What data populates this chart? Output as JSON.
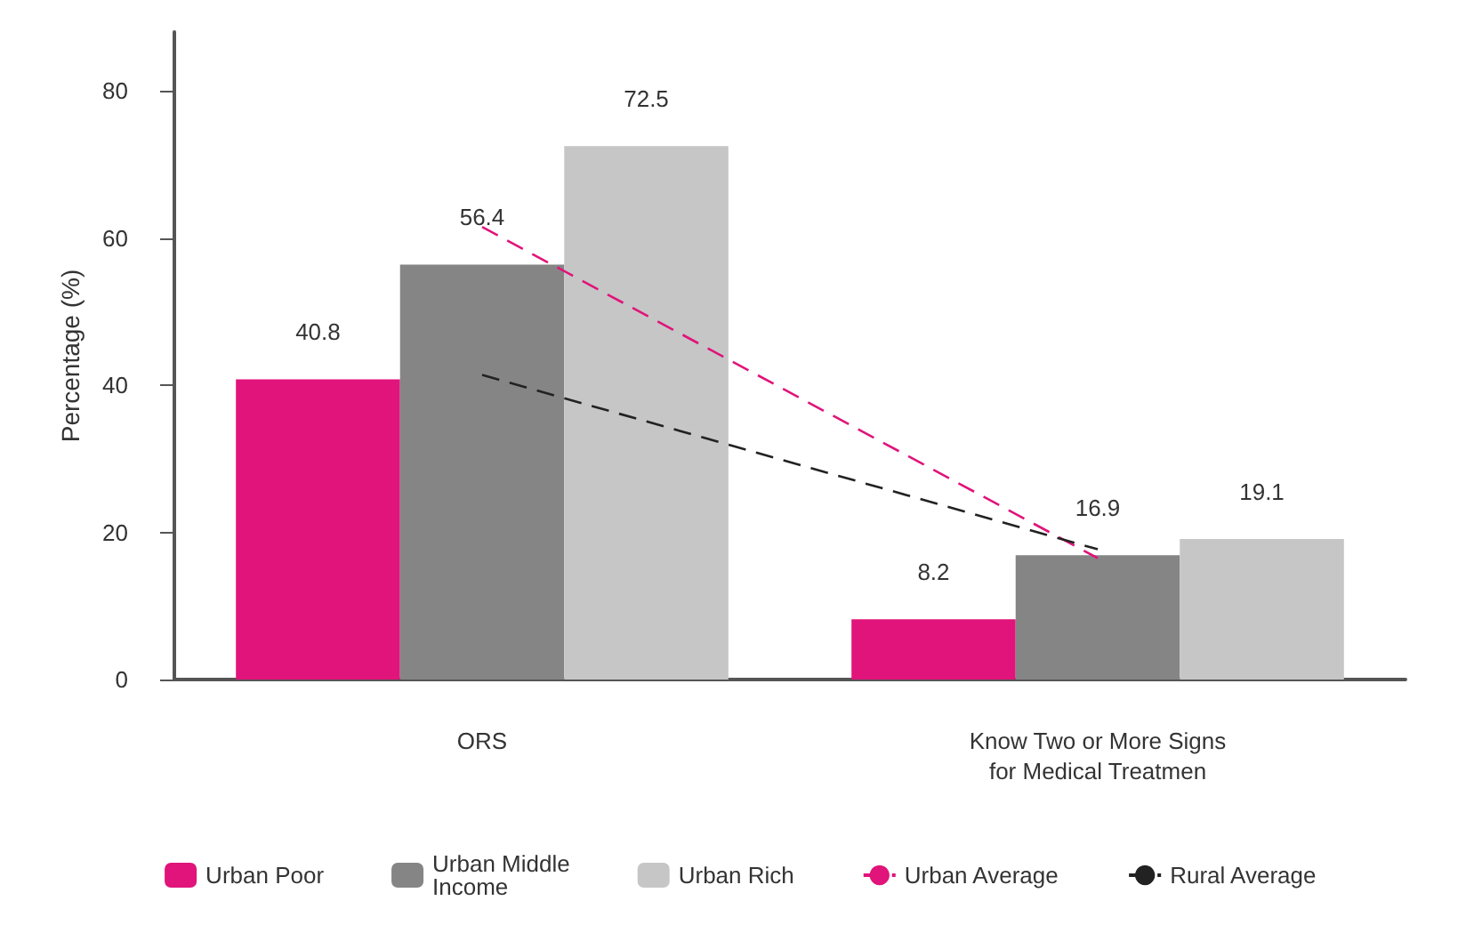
{
  "chart_data": {
    "type": "bar",
    "ylabel": "Percentage (%)",
    "categories": [
      "ORS",
      "Know Two or More Signs\nfor Medical Treatmen"
    ],
    "ylim": [
      0,
      88
    ],
    "yticks": [
      0,
      20,
      40,
      60,
      80
    ],
    "grid": false,
    "legend": "bottom",
    "series": [
      {
        "name": "Urban Poor",
        "color": "#e0147a",
        "values": [
          40.8,
          8.2
        ],
        "value_labels": [
          "40.8",
          "8.2"
        ]
      },
      {
        "name": "Urban Middle\nIncome",
        "color": "#858585",
        "values": [
          56.4,
          16.9
        ],
        "value_labels": [
          "56.4",
          "16.9"
        ]
      },
      {
        "name": "Urban Rich",
        "color": "#c6c6c6",
        "values": [
          72.5,
          19.1
        ],
        "value_labels": [
          "72.5",
          "19.1"
        ]
      },
      {
        "name": "Urban Average",
        "type": "line",
        "color": "#e0147a",
        "line_style": "dashed",
        "values": [
          61.5,
          16.5
        ]
      },
      {
        "name": "Rural Average",
        "type": "line",
        "color": "#222222",
        "line_style": "dashed",
        "values": [
          41.4,
          17.7
        ]
      }
    ]
  }
}
